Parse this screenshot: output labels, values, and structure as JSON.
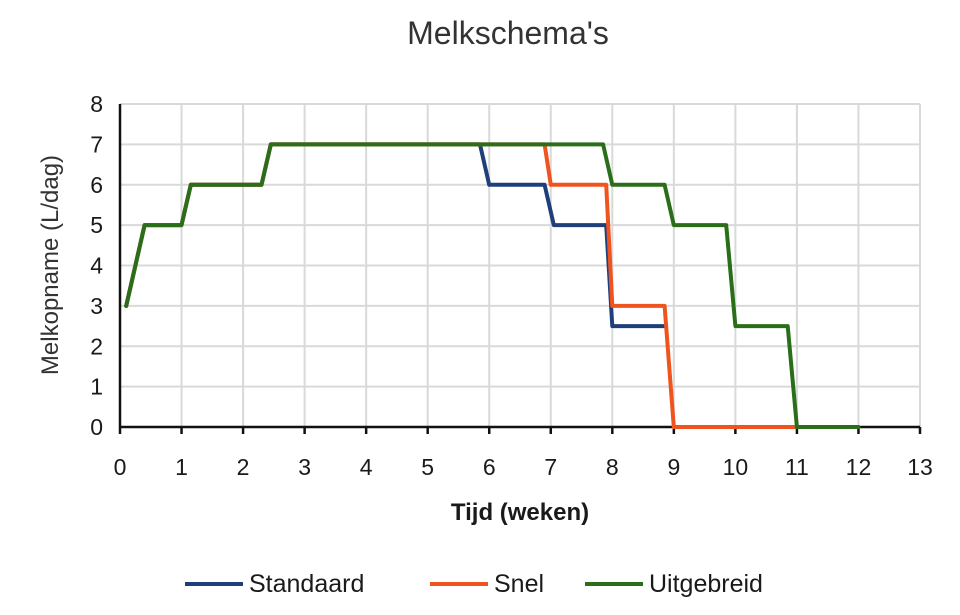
{
  "chart_data": {
    "type": "line",
    "title": "Melkschema's",
    "xlabel": "Tijd (weken)",
    "ylabel": "Melkopname (L/dag)",
    "xlim": [
      0,
      13
    ],
    "ylim": [
      0,
      8
    ],
    "xticks": [
      "0",
      "1",
      "2",
      "3",
      "4",
      "5",
      "6",
      "7",
      "8",
      "9",
      "10",
      "11",
      "12",
      "13"
    ],
    "yticks": [
      "0",
      "1",
      "2",
      "3",
      "4",
      "5",
      "6",
      "7",
      "8"
    ],
    "grid": true,
    "legend_position": "bottom",
    "series": [
      {
        "name": "Standaard",
        "color": "#1f3f7a",
        "points": [
          [
            0.1,
            3
          ],
          [
            0.4,
            5
          ],
          [
            1.0,
            5
          ],
          [
            1.15,
            6
          ],
          [
            2.3,
            6
          ],
          [
            2.45,
            7
          ],
          [
            5.85,
            7
          ],
          [
            6.0,
            6
          ],
          [
            6.9,
            6
          ],
          [
            7.05,
            5
          ],
          [
            7.9,
            5
          ],
          [
            8.0,
            2.5
          ],
          [
            8.85,
            2.5
          ]
        ]
      },
      {
        "name": "Snel",
        "color": "#f0541e",
        "points": [
          [
            0.1,
            3
          ],
          [
            0.4,
            5
          ],
          [
            1.0,
            5
          ],
          [
            1.15,
            6
          ],
          [
            2.3,
            6
          ],
          [
            2.45,
            7
          ],
          [
            6.9,
            7
          ],
          [
            7.0,
            6
          ],
          [
            7.9,
            6
          ],
          [
            8.0,
            3
          ],
          [
            8.85,
            3
          ],
          [
            9.0,
            0
          ],
          [
            11.0,
            0
          ]
        ]
      },
      {
        "name": "Uitgebreid",
        "color": "#2a6e1a",
        "points": [
          [
            0.1,
            3
          ],
          [
            0.4,
            5
          ],
          [
            1.0,
            5
          ],
          [
            1.15,
            6
          ],
          [
            2.3,
            6
          ],
          [
            2.45,
            7
          ],
          [
            7.85,
            7
          ],
          [
            8.0,
            6
          ],
          [
            8.85,
            6
          ],
          [
            9.0,
            5
          ],
          [
            9.85,
            5
          ],
          [
            10.0,
            2.5
          ],
          [
            10.85,
            2.5
          ],
          [
            11.0,
            0
          ],
          [
            12.0,
            0
          ]
        ]
      }
    ]
  }
}
